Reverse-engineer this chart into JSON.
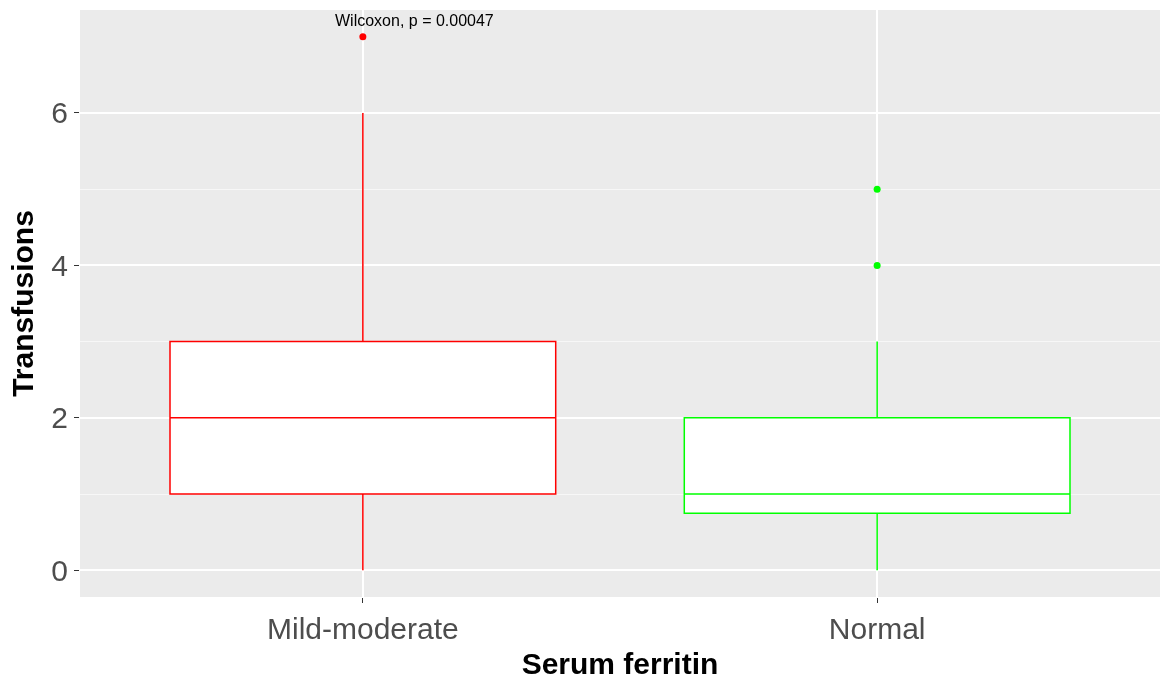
{
  "chart_data": {
    "type": "box",
    "xlabel": "Serum ferritin",
    "ylabel": "Transfusions",
    "categories": [
      "Mild-moderate",
      "Normal"
    ],
    "boxes": [
      {
        "low": 0,
        "q1": 1,
        "median": 2,
        "q3": 3,
        "high": 6,
        "outliers": [
          7
        ]
      },
      {
        "low": 0,
        "q1": 0.75,
        "median": 1,
        "q3": 2,
        "high": 3,
        "outliers": [
          4,
          5
        ]
      }
    ],
    "colors": [
      "#ff0000",
      "#00ff00"
    ],
    "ylim": [
      -0.35,
      7.35
    ],
    "yticks": [
      0,
      2,
      4,
      6
    ],
    "grid": true,
    "annotations": [
      "Wilcoxon, p = 0.00047"
    ]
  }
}
